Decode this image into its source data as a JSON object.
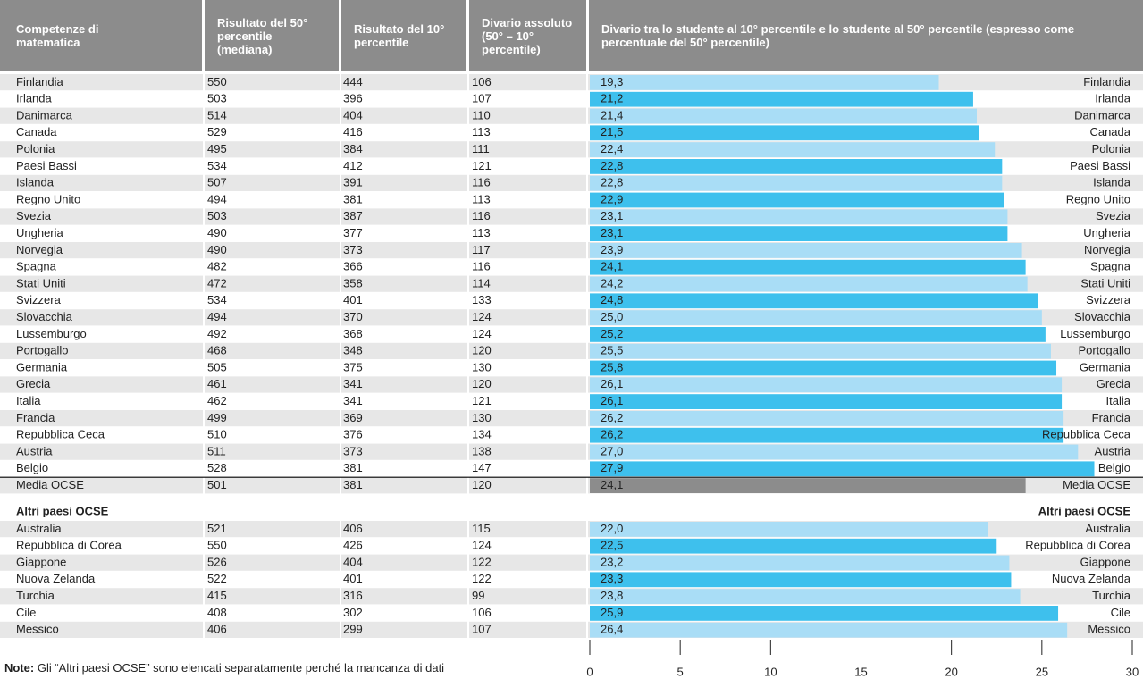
{
  "table": {
    "headers": [
      "Competenze di matematica",
      "Risultato del 50° percentile (mediana)",
      "Risultato del 10° percentile",
      "Divario assoluto (50° – 10° percentile)"
    ],
    "rows": [
      [
        550,
        444,
        106
      ],
      [
        503,
        396,
        107
      ],
      [
        514,
        404,
        110
      ],
      [
        529,
        416,
        113
      ],
      [
        495,
        384,
        111
      ],
      [
        534,
        412,
        121
      ],
      [
        507,
        391,
        116
      ],
      [
        494,
        381,
        113
      ],
      [
        503,
        387,
        116
      ],
      [
        490,
        377,
        113
      ],
      [
        490,
        373,
        117
      ],
      [
        482,
        366,
        116
      ],
      [
        472,
        358,
        114
      ],
      [
        534,
        401,
        133
      ],
      [
        494,
        370,
        124
      ],
      [
        492,
        368,
        124
      ],
      [
        468,
        348,
        120
      ],
      [
        505,
        375,
        130
      ],
      [
        461,
        341,
        120
      ],
      [
        462,
        341,
        121
      ],
      [
        499,
        369,
        130
      ],
      [
        510,
        376,
        134
      ],
      [
        511,
        373,
        138
      ],
      [
        528,
        381,
        147
      ],
      [
        501,
        381,
        120
      ]
    ],
    "other_rows": [
      [
        521,
        406,
        115
      ],
      [
        550,
        426,
        124
      ],
      [
        526,
        404,
        122
      ],
      [
        522,
        401,
        122
      ],
      [
        415,
        316,
        99
      ],
      [
        408,
        302,
        106
      ],
      [
        406,
        299,
        107
      ]
    ]
  },
  "note_label": "Note:",
  "note": "Gli “Altri paesi OCSE” sono elencati separatamente perché la mancanza di dati",
  "chart_data": {
    "type": "bar",
    "orientation": "horizontal",
    "title": "Divario tra lo studente al 10° percentile e lo studente al 50° percentile (espresso come percentuale del 50° percentile)",
    "categories": [
      "Finlandia",
      "Irlanda",
      "Danimarca",
      "Canada",
      "Polonia",
      "Paesi Bassi",
      "Islanda",
      "Regno Unito",
      "Svezia",
      "Ungheria",
      "Norvegia",
      "Spagna",
      "Stati Uniti",
      "Svizzera",
      "Slovacchia",
      "Lussemburgo",
      "Portogallo",
      "Germania",
      "Grecia",
      "Italia",
      "Francia",
      "Repubblica Ceca",
      "Austria",
      "Belgio",
      "Media OCSE"
    ],
    "values": [
      19.3,
      21.2,
      21.4,
      21.5,
      22.4,
      22.8,
      22.8,
      22.9,
      23.1,
      23.1,
      23.9,
      24.1,
      24.2,
      24.8,
      25.0,
      25.2,
      25.5,
      25.8,
      26.1,
      26.1,
      26.2,
      26.2,
      27.0,
      27.9,
      24.1
    ],
    "value_labels": [
      "19,3",
      "21,2",
      "21,4",
      "21,5",
      "22,4",
      "22,8",
      "22,8",
      "22,9",
      "23,1",
      "23,1",
      "23,9",
      "24,1",
      "24,2",
      "24,8",
      "25,0",
      "25,2",
      "25,5",
      "25,8",
      "26,1",
      "26,1",
      "26,2",
      "26,2",
      "27,0",
      "27,9",
      "24,1"
    ],
    "section_title": "Altri paesi OCSE",
    "categories2": [
      "Australia",
      "Repubblica di Corea",
      "Giappone",
      "Nuova Zelanda",
      "Turchia",
      "Cile",
      "Messico"
    ],
    "values2": [
      22.0,
      22.5,
      23.2,
      23.3,
      23.8,
      25.9,
      26.4
    ],
    "value_labels2": [
      "22,0",
      "22,5",
      "23,2",
      "23,3",
      "23,8",
      "25,9",
      "26,4"
    ],
    "colors": [
      "#a9ddf6",
      "#3ec0ed"
    ],
    "average_color": "#8c8c8c",
    "xlim": [
      0,
      30
    ],
    "xticks": [
      0,
      5,
      10,
      15,
      20,
      25,
      30
    ]
  }
}
